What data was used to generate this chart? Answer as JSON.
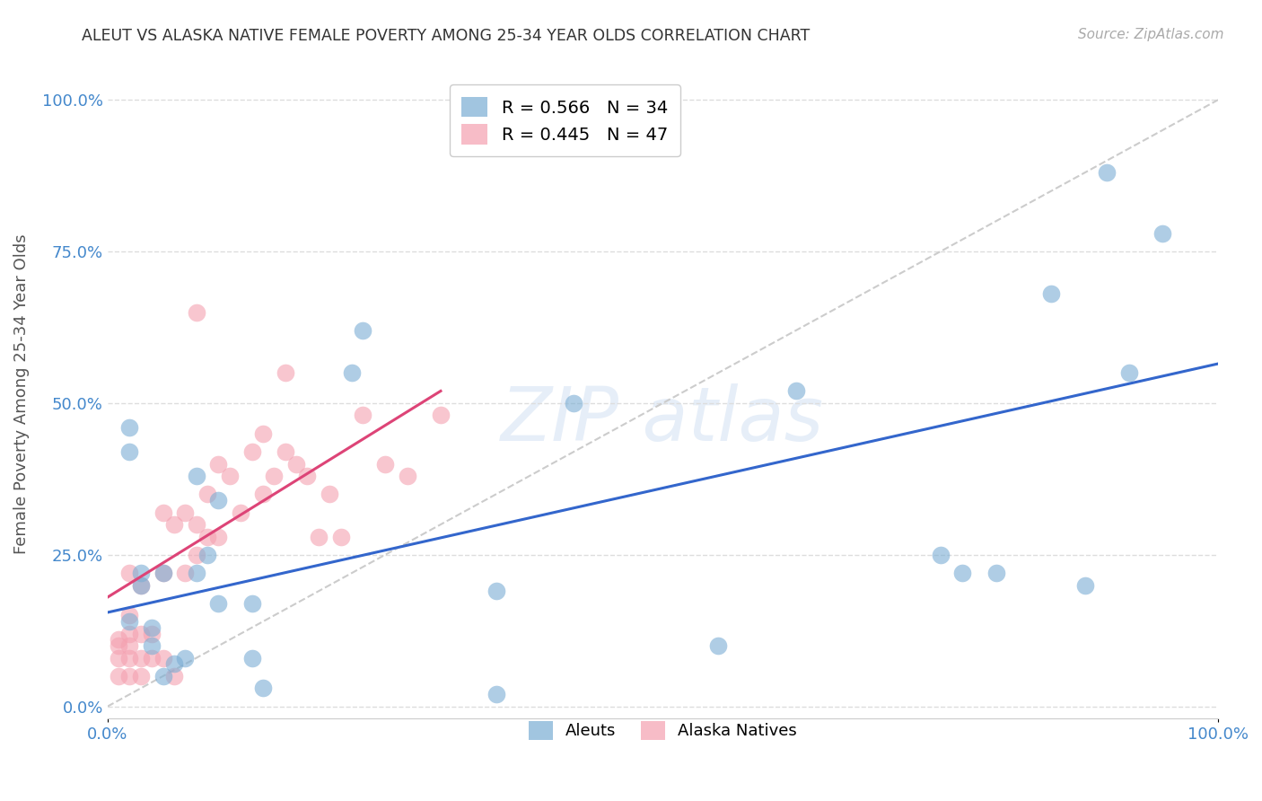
{
  "title": "ALEUT VS ALASKA NATIVE FEMALE POVERTY AMONG 25-34 YEAR OLDS CORRELATION CHART",
  "source": "Source: ZipAtlas.com",
  "ylabel": "Female Poverty Among 25-34 Year Olds",
  "ytick_labels": [
    "0.0%",
    "25.0%",
    "50.0%",
    "75.0%",
    "100.0%"
  ],
  "ytick_values": [
    0,
    0.25,
    0.5,
    0.75,
    1.0
  ],
  "xlim": [
    0,
    1.0
  ],
  "ylim": [
    -0.02,
    1.05
  ],
  "aleuts_color": "#7aadd4",
  "alaska_natives_color": "#f4a0b0",
  "trendline_aleuts_color": "#3366cc",
  "trendline_alaska_natives_color": "#dd4477",
  "diagonal_color": "#cccccc",
  "grid_color": "#dddddd",
  "background_color": "#ffffff",
  "title_color": "#333333",
  "axis_label_color": "#4488cc",
  "aleuts_R": 0.566,
  "aleuts_N": 34,
  "alaska_natives_R": 0.445,
  "alaska_natives_N": 47,
  "aleuts_x": [
    0.02,
    0.02,
    0.02,
    0.03,
    0.03,
    0.04,
    0.04,
    0.05,
    0.05,
    0.06,
    0.07,
    0.08,
    0.08,
    0.09,
    0.1,
    0.1,
    0.13,
    0.13,
    0.14,
    0.22,
    0.23,
    0.35,
    0.35,
    0.42,
    0.55,
    0.62,
    0.75,
    0.77,
    0.8,
    0.85,
    0.88,
    0.9,
    0.92,
    0.95
  ],
  "aleuts_y": [
    0.14,
    0.42,
    0.46,
    0.2,
    0.22,
    0.1,
    0.13,
    0.05,
    0.22,
    0.07,
    0.08,
    0.22,
    0.38,
    0.25,
    0.17,
    0.34,
    0.17,
    0.08,
    0.03,
    0.55,
    0.62,
    0.19,
    0.02,
    0.5,
    0.1,
    0.52,
    0.25,
    0.22,
    0.22,
    0.68,
    0.2,
    0.88,
    0.55,
    0.78
  ],
  "alaska_natives_x": [
    0.01,
    0.01,
    0.01,
    0.01,
    0.02,
    0.02,
    0.02,
    0.02,
    0.02,
    0.02,
    0.03,
    0.03,
    0.03,
    0.03,
    0.04,
    0.04,
    0.05,
    0.05,
    0.05,
    0.06,
    0.06,
    0.07,
    0.07,
    0.08,
    0.08,
    0.08,
    0.09,
    0.09,
    0.1,
    0.1,
    0.11,
    0.12,
    0.13,
    0.14,
    0.14,
    0.15,
    0.16,
    0.16,
    0.17,
    0.18,
    0.19,
    0.2,
    0.21,
    0.23,
    0.25,
    0.27,
    0.3
  ],
  "alaska_natives_y": [
    0.05,
    0.08,
    0.1,
    0.11,
    0.05,
    0.08,
    0.1,
    0.12,
    0.15,
    0.22,
    0.05,
    0.08,
    0.12,
    0.2,
    0.08,
    0.12,
    0.08,
    0.22,
    0.32,
    0.05,
    0.3,
    0.22,
    0.32,
    0.25,
    0.3,
    0.65,
    0.28,
    0.35,
    0.28,
    0.4,
    0.38,
    0.32,
    0.42,
    0.35,
    0.45,
    0.38,
    0.42,
    0.55,
    0.4,
    0.38,
    0.28,
    0.35,
    0.28,
    0.48,
    0.4,
    0.38,
    0.48
  ],
  "trendline_aleuts_x0": 0.0,
  "trendline_aleuts_y0": 0.155,
  "trendline_aleuts_x1": 1.0,
  "trendline_aleuts_y1": 0.565,
  "trendline_alaska_x0": 0.0,
  "trendline_alaska_y0": 0.18,
  "trendline_alaska_x1": 0.3,
  "trendline_alaska_y1": 0.52
}
